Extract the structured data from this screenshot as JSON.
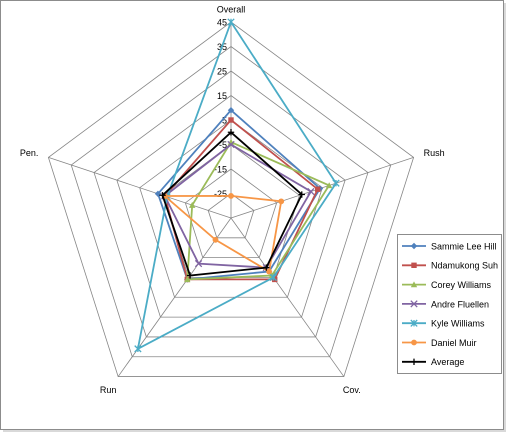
{
  "chart_data": {
    "type": "radar",
    "categories": [
      "Overall",
      "Rush",
      "Cov.",
      "Run",
      "Pen."
    ],
    "ylim": [
      -35,
      45
    ],
    "yticks": [
      -25,
      -15,
      -5,
      5,
      15,
      25,
      35,
      45
    ],
    "grid": true,
    "legend": "right",
    "series": [
      {
        "name": "Sammie Lee Hill",
        "color": "#4f81bd",
        "marker": "diamond",
        "values": [
          9,
          4,
          -8,
          -4,
          -3
        ]
      },
      {
        "name": "Ndamukong Suh",
        "color": "#c0504d",
        "marker": "square",
        "values": [
          5,
          3,
          -4,
          -4,
          -6
        ]
      },
      {
        "name": "Corey Williams",
        "color": "#9bbb59",
        "marker": "triangle",
        "values": [
          -4,
          8,
          -6,
          -4,
          -18
        ]
      },
      {
        "name": "Andre Fluellen",
        "color": "#8064a2",
        "marker": "x",
        "values": [
          -5,
          0,
          -10,
          -12,
          -6
        ]
      },
      {
        "name": "Kyle Williams",
        "color": "#4bacc6",
        "marker": "star",
        "values": [
          45,
          11,
          -5,
          31,
          -7
        ]
      },
      {
        "name": "Daniel Muir",
        "color": "#f79646",
        "marker": "circle",
        "values": [
          -26,
          -13,
          -8,
          -24,
          -6
        ]
      },
      {
        "name": "Average",
        "color": "#000000",
        "marker": "plus",
        "values": [
          0,
          -4,
          -10,
          -6,
          -5
        ]
      }
    ]
  }
}
